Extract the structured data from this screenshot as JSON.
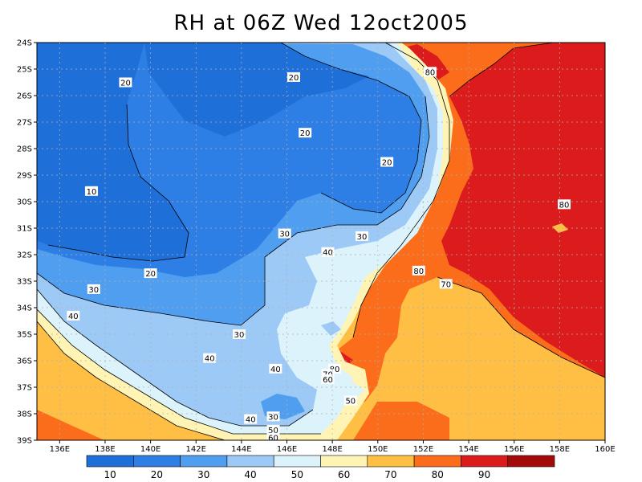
{
  "title": "RH at 06Z Wed 12oct2005",
  "map": {
    "lon_range": [
      135,
      160
    ],
    "lat_range": [
      -39,
      -24
    ],
    "lon_ticks": [
      "136E",
      "138E",
      "140E",
      "142E",
      "144E",
      "146E",
      "148E",
      "150E",
      "152E",
      "154E",
      "156E",
      "158E",
      "160E"
    ],
    "lat_ticks": [
      "24S",
      "25S",
      "26S",
      "27S",
      "28S",
      "29S",
      "30S",
      "31S",
      "32S",
      "33S",
      "34S",
      "35S",
      "36S",
      "37S",
      "38S",
      "39S"
    ]
  },
  "colorbar": {
    "colors": [
      "#1f6fd9",
      "#2e7fe5",
      "#4f9ef0",
      "#9cc9f5",
      "#dcf3fb",
      "#fff4b3",
      "#ffbe44",
      "#fb6d1a",
      "#dc1c1c",
      "#a50a0a"
    ],
    "labels": [
      "10",
      "20",
      "30",
      "40",
      "50",
      "60",
      "70",
      "80",
      "90"
    ]
  },
  "contour_labels": [
    {
      "text": "20",
      "lon": 138.9,
      "lat": -25.5
    },
    {
      "text": "20",
      "lon": 146.3,
      "lat": -25.3
    },
    {
      "text": "20",
      "lon": 146.8,
      "lat": -27.4
    },
    {
      "text": "20",
      "lon": 150.4,
      "lat": -28.5
    },
    {
      "text": "10",
      "lon": 137.4,
      "lat": -29.6
    },
    {
      "text": "30",
      "lon": 145.9,
      "lat": -31.2
    },
    {
      "text": "30",
      "lon": 149.3,
      "lat": -31.3
    },
    {
      "text": "40",
      "lon": 147.8,
      "lat": -31.9
    },
    {
      "text": "20",
      "lon": 140.0,
      "lat": -32.7
    },
    {
      "text": "80",
      "lon": 151.8,
      "lat": -32.6
    },
    {
      "text": "70",
      "lon": 153.0,
      "lat": -33.1
    },
    {
      "text": "30",
      "lon": 137.5,
      "lat": -33.3
    },
    {
      "text": "40",
      "lon": 136.6,
      "lat": -34.3
    },
    {
      "text": "30",
      "lon": 143.9,
      "lat": -35.0
    },
    {
      "text": "40",
      "lon": 142.6,
      "lat": -35.9
    },
    {
      "text": "40",
      "lon": 145.5,
      "lat": -36.3
    },
    {
      "text": "80",
      "lon": 148.1,
      "lat": -36.3
    },
    {
      "text": "70",
      "lon": 147.8,
      "lat": -36.5
    },
    {
      "text": "60",
      "lon": 147.8,
      "lat": -36.7
    },
    {
      "text": "50",
      "lon": 148.8,
      "lat": -37.5
    },
    {
      "text": "30",
      "lon": 145.4,
      "lat": -38.1
    },
    {
      "text": "40",
      "lon": 144.4,
      "lat": -38.2
    },
    {
      "text": "50",
      "lon": 145.4,
      "lat": -38.6
    },
    {
      "text": "60",
      "lon": 145.4,
      "lat": -38.9
    },
    {
      "text": "80",
      "lon": 152.3,
      "lat": -25.1
    },
    {
      "text": "80",
      "lon": 158.2,
      "lat": -30.1
    }
  ]
}
